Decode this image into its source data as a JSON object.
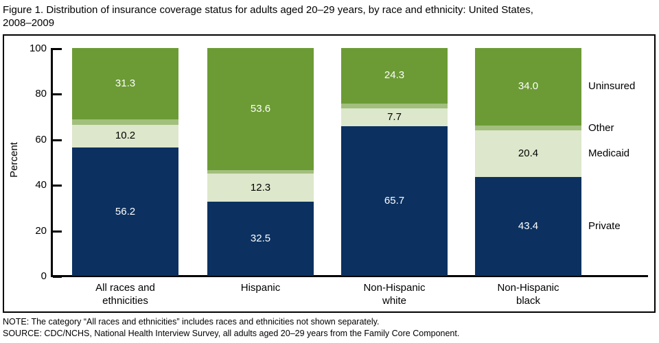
{
  "title": {
    "line1": "Figure 1. Distribution of insurance coverage status for adults aged 20–29 years, by race and ethnicity: United States,",
    "line2": "2008–2009"
  },
  "notes": {
    "note": "NOTE: The category “All races and ethnicities” includes races and ethnicities not shown separately.",
    "source": "SOURCE: CDC/NCHS, National Health Interview Survey, all adults aged 20–29 years from the Family Core Component."
  },
  "chart_data": {
    "type": "bar",
    "stacked": true,
    "title": "Distribution of insurance coverage status for adults aged 20–29 years, by race and ethnicity: United States, 2008–2009",
    "ylabel": "Percent",
    "ylim": [
      0,
      100
    ],
    "yticks": [
      0,
      20,
      40,
      60,
      80,
      100
    ],
    "grid": false,
    "legend_position": "right",
    "categories": [
      "All races and ethnicities",
      "Hispanic",
      "Non-Hispanic white",
      "Non-Hispanic black"
    ],
    "category_lines": [
      [
        "All races and",
        "ethnicities"
      ],
      [
        "Hispanic"
      ],
      [
        "Non-Hispanic",
        "white"
      ],
      [
        "Non-Hispanic",
        "black"
      ]
    ],
    "series": [
      {
        "name": "Private",
        "color": "#0C3160",
        "label_color": "#FFFFFF",
        "show_values": true,
        "values": [
          56.2,
          32.5,
          65.7,
          43.4
        ]
      },
      {
        "name": "Medicaid",
        "color": "#DDE7CB",
        "label_color": "#000000",
        "show_values": true,
        "values": [
          10.2,
          12.3,
          7.7,
          20.4
        ]
      },
      {
        "name": "Other",
        "color": "#A2BF7D",
        "label_color": "#000000",
        "show_values": false,
        "values": [
          2.3,
          1.6,
          2.3,
          2.2
        ]
      },
      {
        "name": "Uninsured",
        "color": "#6C9B35",
        "label_color": "#FFFFFF",
        "show_values": true,
        "values": [
          31.3,
          53.6,
          24.3,
          34.0
        ]
      }
    ]
  }
}
